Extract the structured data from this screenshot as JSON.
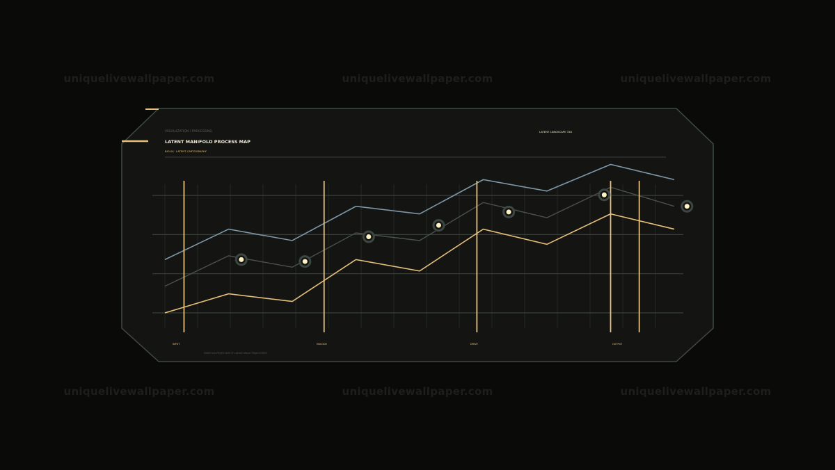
{
  "watermark": "uniquelivewallpaper.com",
  "header": {
    "eyebrow": "VISUALIZATION / PROCESSING",
    "title": "LATENT MANIFOLD PROCESS MAP",
    "meta_left": "BIO.04",
    "meta_sep": "//",
    "meta_right": "LATENT CARTOGRAPHY",
    "top_right": "LATENT LANDSCAPE 318"
  },
  "footer": {
    "stage_labels": [
      "INPUT",
      "ENCODE",
      "DRIVE",
      "OUTPUT"
    ],
    "note": "MANIFOLD PROJECTION OF LATENT SPACE TRAJECTORIES"
  },
  "colors": {
    "background": "#0a0a09",
    "panel": "#141513",
    "frame": "#3f4944",
    "accent": "#e6c07b",
    "blue": "#7f98a8",
    "grey": "#4a504d",
    "marker": "#fff3c4"
  },
  "chart_data": {
    "type": "line",
    "grid": true,
    "x": [
      0,
      1,
      2,
      3,
      4,
      5,
      6,
      7,
      8
    ],
    "ylim": [
      0,
      4
    ],
    "series": [
      {
        "values": [
          1.4,
          2.2,
          1.9,
          2.8,
          2.6,
          3.5,
          3.2,
          3.9,
          3.5
        ]
      },
      {
        "values": [
          0.7,
          1.5,
          1.2,
          2.1,
          1.9,
          2.9,
          2.5,
          3.3,
          2.8
        ]
      },
      {
        "values": [
          0.0,
          0.5,
          0.3,
          1.4,
          1.1,
          2.2,
          1.8,
          2.6,
          2.2
        ]
      }
    ],
    "markers": [
      {
        "x": 1.2,
        "y": 1.4
      },
      {
        "x": 2.2,
        "y": 1.35
      },
      {
        "x": 3.2,
        "y": 2.0
      },
      {
        "x": 4.3,
        "y": 2.3
      },
      {
        "x": 5.4,
        "y": 2.65
      },
      {
        "x": 6.9,
        "y": 3.1
      },
      {
        "x": 8.2,
        "y": 2.8
      }
    ],
    "stage_markers": [
      0.3,
      2.5,
      4.9,
      7.0,
      7.45
    ]
  }
}
